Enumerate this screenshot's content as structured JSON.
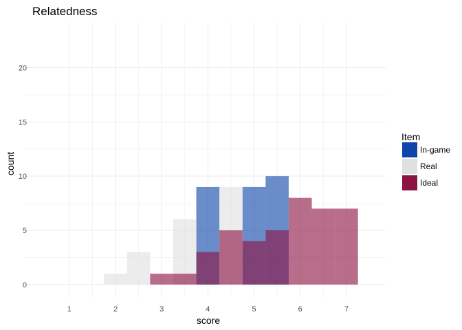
{
  "chart_data": {
    "type": "histogram",
    "title": "Relatedness",
    "xlabel": "score",
    "ylabel": "count",
    "xlim": [
      0.05,
      7.85
    ],
    "ylim": [
      -1.15,
      24.15
    ],
    "x_ticks": [
      1,
      2,
      3,
      4,
      5,
      6,
      7
    ],
    "y_ticks": [
      0,
      5,
      10,
      15,
      20
    ],
    "bin_width": 0.5,
    "grid": true,
    "legend": {
      "title": "Item",
      "position": "right"
    },
    "series": [
      {
        "name": "In-game",
        "color": "#0e45a8",
        "opacity": 0.62,
        "bins": [
          {
            "start": 3.75,
            "value": 9
          },
          {
            "start": 4.75,
            "value": 9
          },
          {
            "start": 5.25,
            "value": 10
          }
        ]
      },
      {
        "name": "Real",
        "color": "#e0e0e0",
        "opacity": 0.62,
        "bins": [
          {
            "start": 1.75,
            "value": 1
          },
          {
            "start": 2.25,
            "value": 3
          },
          {
            "start": 3.25,
            "value": 6
          },
          {
            "start": 4.25,
            "value": 9
          }
        ]
      },
      {
        "name": "Ideal",
        "color": "#8c1444",
        "opacity": 0.62,
        "bins": [
          {
            "start": 2.75,
            "value": 1
          },
          {
            "start": 3.25,
            "value": 1
          },
          {
            "start": 3.75,
            "value": 3
          },
          {
            "start": 4.25,
            "value": 5
          },
          {
            "start": 4.75,
            "value": 4
          },
          {
            "start": 5.25,
            "value": 5
          },
          {
            "start": 5.75,
            "value": 8
          },
          {
            "start": 6.25,
            "value": 7
          },
          {
            "start": 6.75,
            "value": 7
          }
        ]
      }
    ]
  },
  "legend_items": [
    {
      "label": "In-game",
      "color": "#0e45a8"
    },
    {
      "label": "Real",
      "color": "#e0e0e0"
    },
    {
      "label": "Ideal",
      "color": "#8c1444"
    }
  ]
}
